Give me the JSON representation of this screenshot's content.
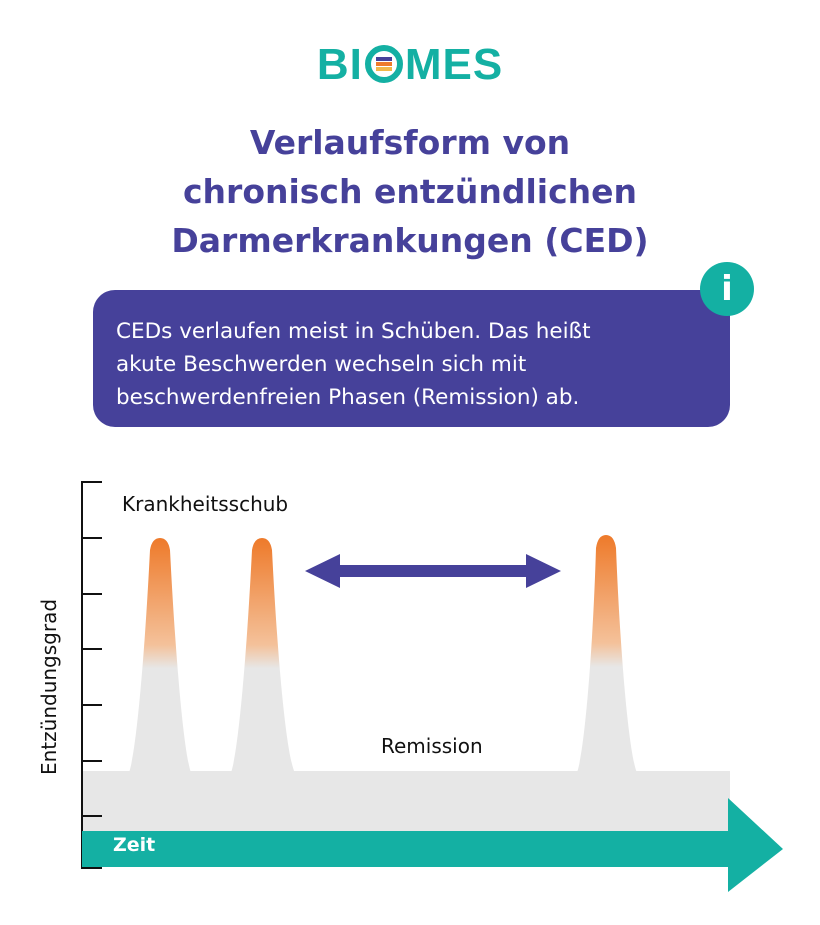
{
  "logo": {
    "text_left": "BI",
    "text_right": "MES"
  },
  "title": "Verlaufsform von\nchronisch entzündlichen\nDarmerkrankungen (CED)",
  "info": {
    "badge": "i",
    "text": "CEDs verlaufen meist in Schüben. Das heißt\nakute Beschwerden wechseln sich mit\nbeschwerdenfreien Phasen (Remission) ab."
  },
  "chart_data": {
    "type": "diagram",
    "y_axis_label": "Entzündungsgrad",
    "x_axis_label": "Zeit",
    "flare_label": "Krankheitsschub",
    "remission_label": "Remission",
    "flares": 3
  },
  "colors": {
    "brand": "#14b0a3",
    "title": "#46419a",
    "info_box": "#46419a",
    "arrow": "#46419a",
    "flare_top": "#ee7a2a",
    "baseline": "#e5e5e5"
  }
}
